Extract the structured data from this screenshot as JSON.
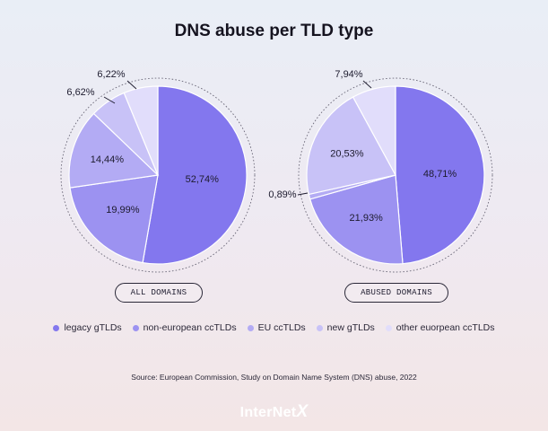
{
  "chart_data": [
    {
      "type": "pie",
      "title": "DNS abuse per TLD type",
      "label": "ALL DOMAINS",
      "slices": [
        {
          "name": "legacy gTLDs",
          "value": 52.74,
          "label": "52,74%"
        },
        {
          "name": "non-european ccTLDs",
          "value": 19.99,
          "label": "19,99%"
        },
        {
          "name": "EU ccTLDs",
          "value": 14.44,
          "label": "14,44%"
        },
        {
          "name": "new gTLDs",
          "value": 6.62,
          "label": "6,62%"
        },
        {
          "name": "other euorpean ccTLDs",
          "value": 6.22,
          "label": "6,22%"
        }
      ]
    },
    {
      "type": "pie",
      "title": "DNS abuse per TLD type",
      "label": "ABUSED DOMAINS",
      "slices": [
        {
          "name": "legacy gTLDs",
          "value": 48.71,
          "label": "48,71%"
        },
        {
          "name": "non-european ccTLDs",
          "value": 21.93,
          "label": "21,93%"
        },
        {
          "name": "EU ccTLDs",
          "value": 0.89,
          "label": "0,89%"
        },
        {
          "name": "new gTLDs",
          "value": 20.53,
          "label": "20,53%"
        },
        {
          "name": "other euorpean ccTLDs",
          "value": 7.94,
          "label": "7,94%"
        }
      ]
    }
  ],
  "title": "DNS abuse per TLD type",
  "legend": [
    {
      "label": "legacy gTLDs",
      "color": "#8377ee"
    },
    {
      "label": "non-european ccTLDs",
      "color": "#9c92f1"
    },
    {
      "label": "EU ccTLDs",
      "color": "#b3abf4"
    },
    {
      "label": "new gTLDs",
      "color": "#c8c2f7"
    },
    {
      "label": "other euorpean ccTLDs",
      "color": "#e1ddfb"
    }
  ],
  "source": "Source: European Commission, Study on Domain Name System (DNS) abuse, 2022",
  "logo": {
    "text": "InterNet",
    "accent": "X"
  }
}
